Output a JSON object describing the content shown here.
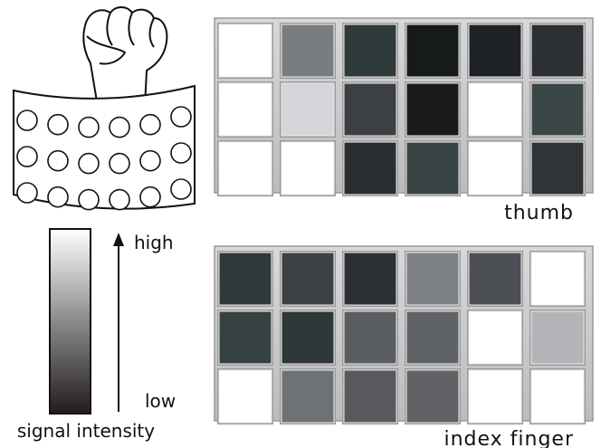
{
  "labels": {
    "high": "high",
    "low": "low",
    "signal": "signal intensity"
  },
  "grids": [
    {
      "label": "thumb",
      "cells": [
        [
          "#ffffff",
          "#7a7d80",
          "#2f3a3b",
          "#161a18",
          "#1e2226",
          "#2c3034"
        ],
        [
          "#ffffff",
          "#d5d6da",
          "#3c4044",
          "#1c1a1a",
          "#ffffff",
          "#3b4647"
        ],
        [
          "#ffffff",
          "#ffffff",
          "#2a2e32",
          "#384444",
          "#ffffff",
          "#303437"
        ]
      ]
    },
    {
      "label": "index finger",
      "cells": [
        [
          "#30393a",
          "#3e4145",
          "#2c3034",
          "#7d8084",
          "#4c4f54",
          "#ffffff"
        ],
        [
          "#364142",
          "#2e3839",
          "#5a5d61",
          "#5f6266",
          "#ffffff",
          "#b3b4b8"
        ],
        [
          "#ffffff",
          "#6e7175",
          "#57595d",
          "#606266",
          "#ffffff",
          "#ffffff"
        ]
      ]
    }
  ]
}
